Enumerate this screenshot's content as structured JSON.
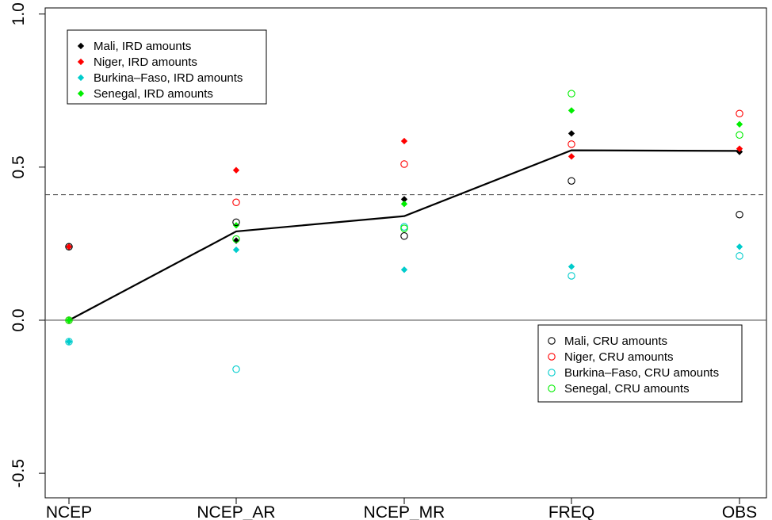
{
  "chart_data": {
    "type": "scatter",
    "title": "",
    "xlabel": "",
    "ylabel": "",
    "categories": [
      "NCEP",
      "NCEP_AR",
      "NCEP_MR",
      "FREQ",
      "OBS"
    ],
    "ylim": [
      -0.58,
      1.02
    ],
    "y_ticks": [
      "-0.5",
      "0.0",
      "0.5",
      "1.0"
    ],
    "y_tick_values": [
      -0.5,
      0.0,
      0.5,
      1.0
    ],
    "hlines": [
      {
        "value": 0.0,
        "style": "solid",
        "color": "#555555"
      },
      {
        "value": 0.41,
        "style": "dashed",
        "color": "#444444"
      }
    ],
    "mean_line": {
      "values": [
        0.0,
        0.29,
        0.34,
        0.555,
        0.553
      ],
      "color": "#000000"
    },
    "series": [
      {
        "name": "Mali, IRD amounts",
        "marker": "diamond",
        "color": "#000000",
        "values": [
          0.24,
          0.26,
          0.395,
          0.61,
          0.55
        ]
      },
      {
        "name": "Niger, IRD amounts",
        "marker": "diamond",
        "color": "#ff0000",
        "values": [
          0.24,
          0.49,
          0.585,
          0.535,
          0.56
        ]
      },
      {
        "name": "Burkina–Faso, IRD amounts",
        "marker": "diamond",
        "color": "#00cccc",
        "values": [
          -0.07,
          0.23,
          0.165,
          0.175,
          0.24
        ]
      },
      {
        "name": "Senegal, IRD amounts",
        "marker": "diamond",
        "color": "#00ee00",
        "values": [
          0.0,
          0.31,
          0.38,
          0.685,
          0.64
        ]
      },
      {
        "name": "Mali, CRU amounts",
        "marker": "circle",
        "color": "#000000",
        "values": [
          0.24,
          0.32,
          0.275,
          0.455,
          0.345
        ]
      },
      {
        "name": "Niger, CRU amounts",
        "marker": "circle",
        "color": "#ff0000",
        "values": [
          0.0,
          0.385,
          0.51,
          0.575,
          0.675
        ]
      },
      {
        "name": "Burkina–Faso, CRU amounts",
        "marker": "circle",
        "color": "#00cccc",
        "values": [
          -0.07,
          -0.16,
          0.305,
          0.145,
          0.21
        ]
      },
      {
        "name": "Senegal, CRU amounts",
        "marker": "circle",
        "color": "#00ee00",
        "values": [
          0.0,
          0.265,
          0.3,
          0.74,
          0.605
        ]
      }
    ],
    "legends": [
      {
        "position": "top-left",
        "series_indices": [
          0,
          1,
          2,
          3
        ]
      },
      {
        "position": "bottom-right",
        "series_indices": [
          4,
          5,
          6,
          7
        ]
      }
    ],
    "grid": false
  }
}
